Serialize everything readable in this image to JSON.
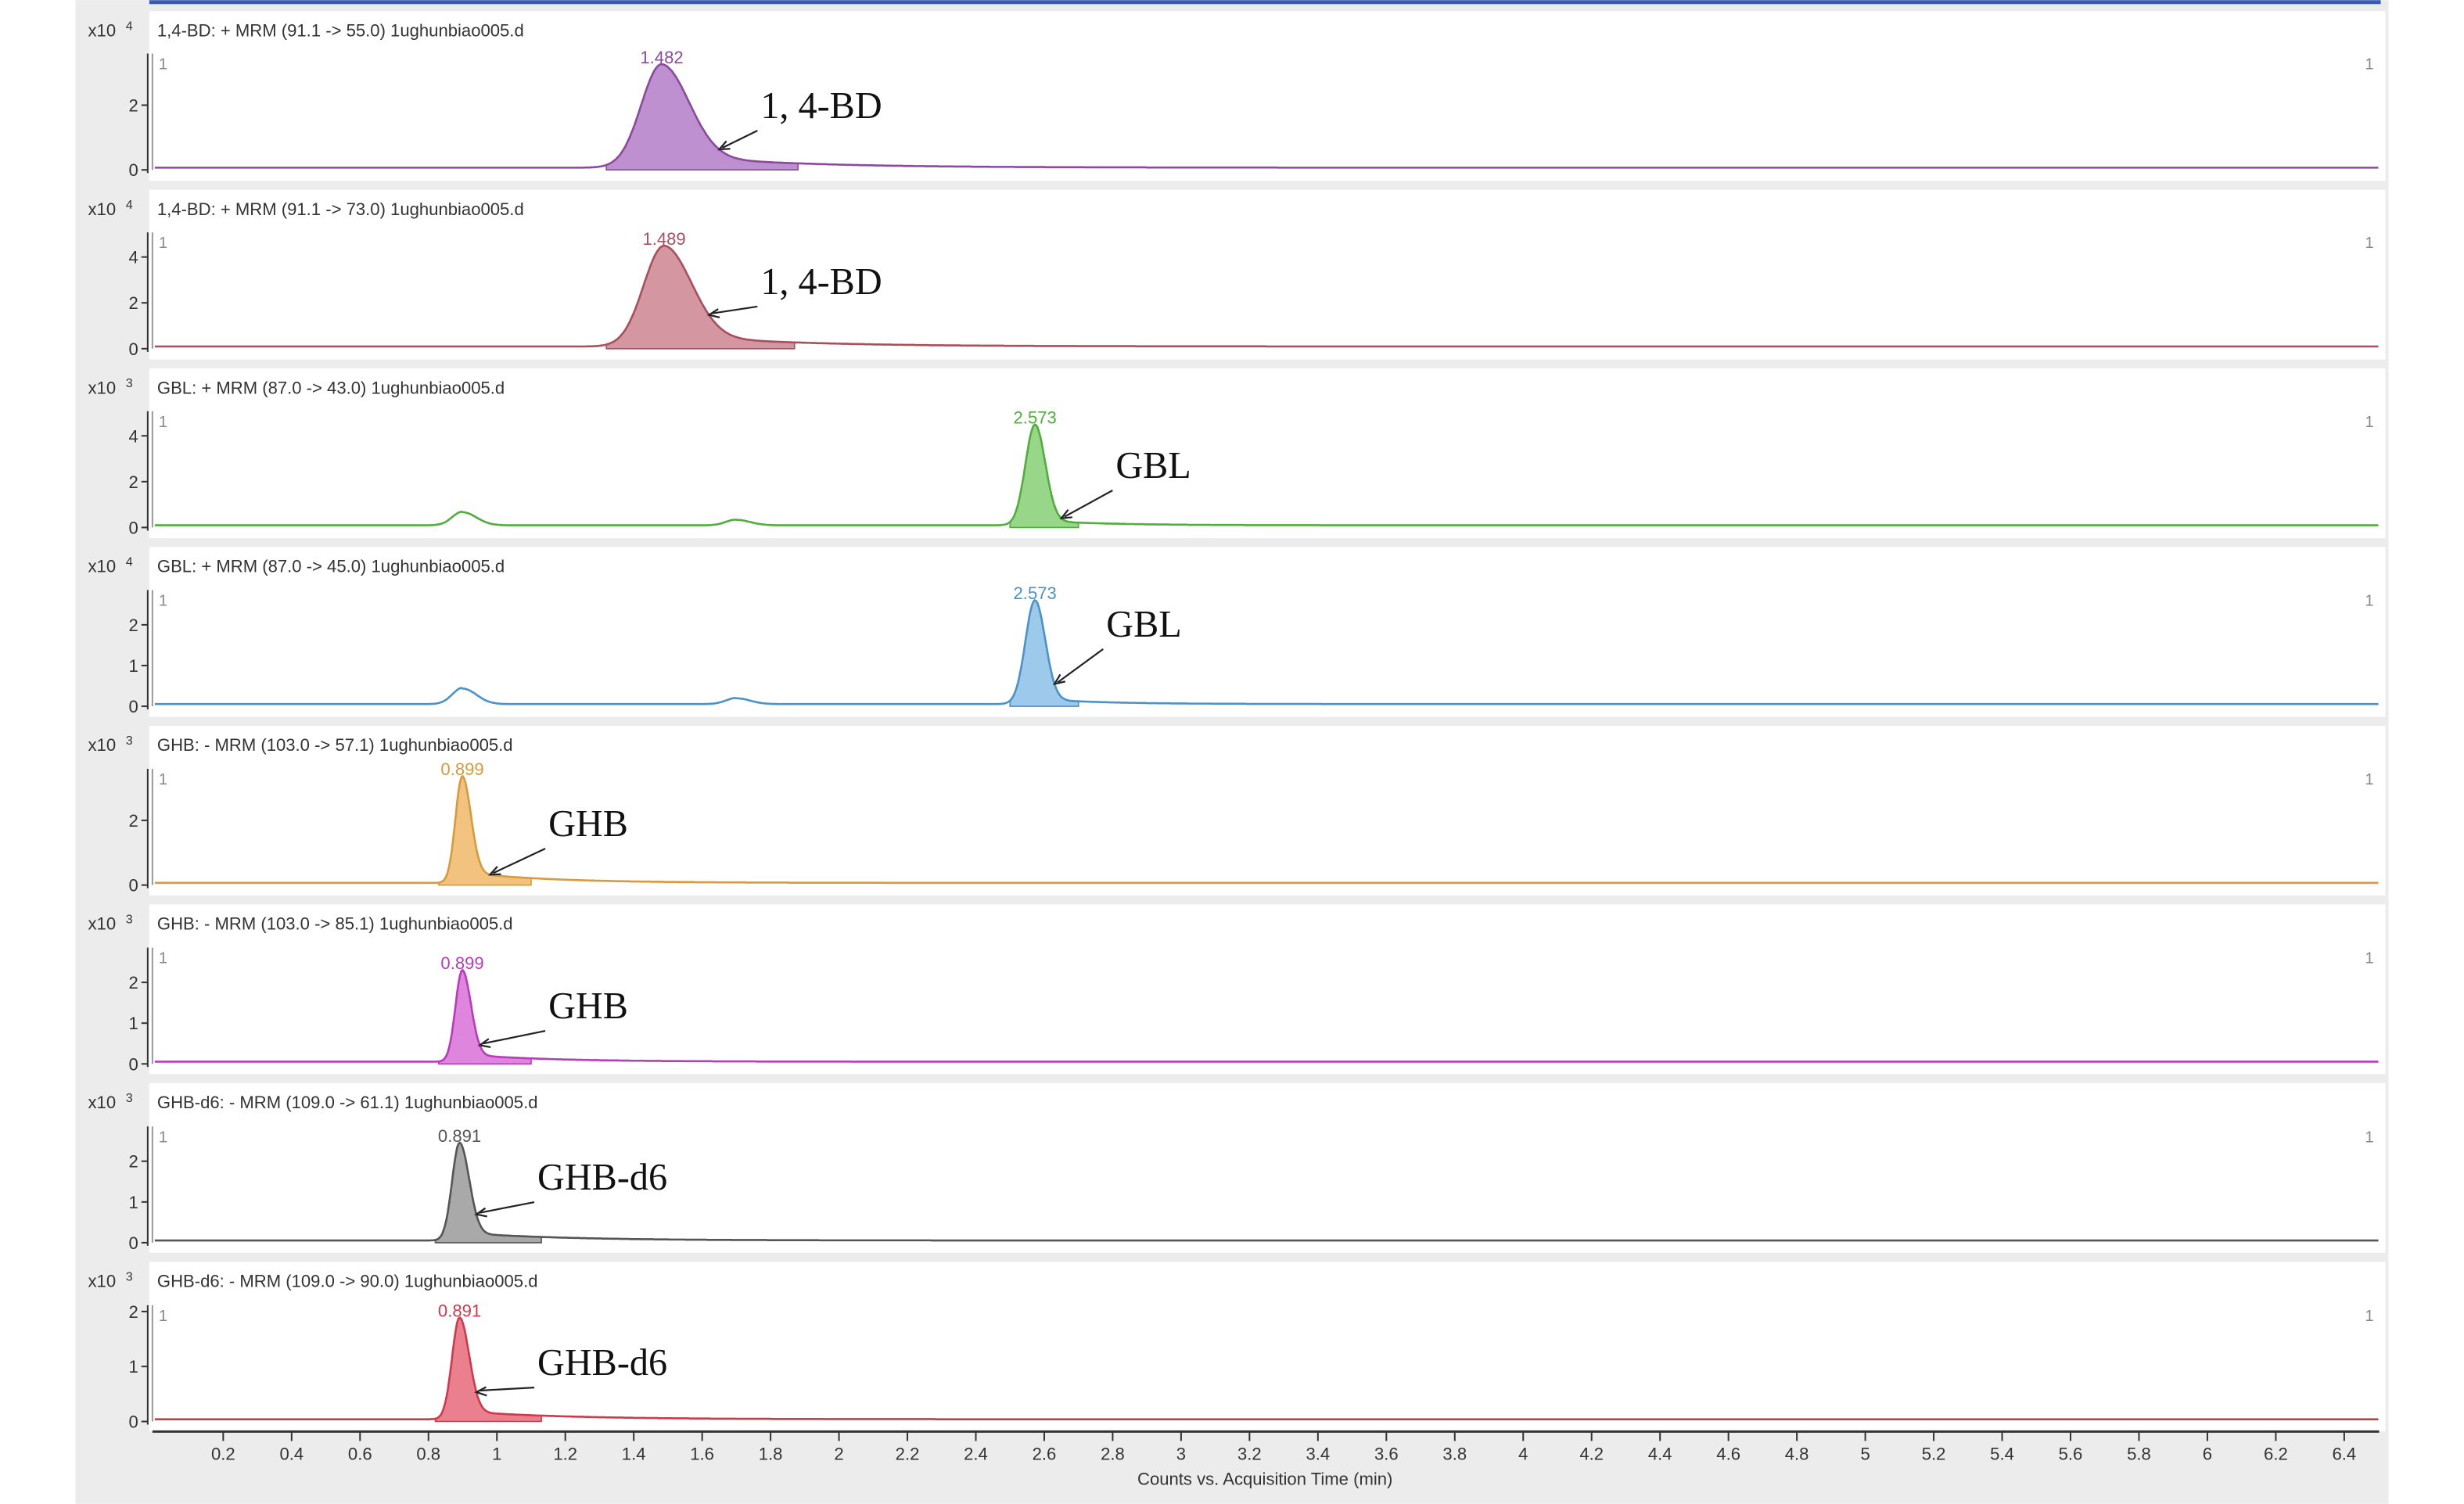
{
  "chart_data": {
    "type": "line",
    "xlabel": "Counts vs. Acquisition Time (min)",
    "xlim": [
      0,
      6.5
    ],
    "xticks": [
      "0.2",
      "0.4",
      "0.6",
      "0.8",
      "1",
      "1.2",
      "1.4",
      "1.6",
      "1.8",
      "2",
      "2.2",
      "2.4",
      "2.6",
      "2.8",
      "3",
      "3.2",
      "3.4",
      "3.6",
      "3.8",
      "4",
      "4.2",
      "4.4",
      "4.6",
      "4.8",
      "5",
      "5.2",
      "5.4",
      "5.6",
      "5.8",
      "6",
      "6.2",
      "6.4"
    ],
    "grid": false,
    "panels": [
      {
        "title": "1,4-BD: + MRM (91.1 -> 55.0) 1ughunbiao005.d",
        "exponent": "x10",
        "power": "4",
        "yticks": [
          "0",
          "2"
        ],
        "ymax": 3.4,
        "color": "#b47cc7",
        "line": "#8a4a9e",
        "marker_left": "1",
        "marker_right": "1",
        "peak_label": "1.482",
        "annotation": "1, 4-BD",
        "peaks": [
          {
            "rt": 1.482,
            "height": 3.2
          }
        ],
        "integration": [
          1.32,
          1.88
        ]
      },
      {
        "title": "1,4-BD: + MRM (91.1 -> 73.0) 1ughunbiao005.d",
        "exponent": "x10",
        "power": "4",
        "yticks": [
          "0",
          "2",
          "4"
        ],
        "ymax": 4.8,
        "color": "#cc8590",
        "line": "#a84f5e",
        "marker_left": "1",
        "marker_right": "1",
        "peak_label": "1.489",
        "annotation": "1, 4-BD",
        "peaks": [
          {
            "rt": 1.489,
            "height": 4.4
          }
        ],
        "integration": [
          1.32,
          1.87
        ]
      },
      {
        "title": "GBL: + MRM (87.0 -> 43.0) 1ughunbiao005.d",
        "exponent": "x10",
        "power": "3",
        "yticks": [
          "0",
          "2",
          "4"
        ],
        "ymax": 4.8,
        "color": "#86d074",
        "line": "#4fae3c",
        "marker_left": "1",
        "marker_right": "1",
        "peak_label": "2.573",
        "annotation": "GBL",
        "peaks": [
          {
            "rt": 0.9,
            "height": 0.6
          },
          {
            "rt": 1.7,
            "height": 0.25
          },
          {
            "rt": 2.573,
            "height": 4.4
          }
        ],
        "integration": [
          2.5,
          2.7
        ]
      },
      {
        "title": "GBL: + MRM (87.0 -> 45.0) 1ughunbiao005.d",
        "exponent": "x10",
        "power": "4",
        "yticks": [
          "0",
          "1",
          "2"
        ],
        "ymax": 2.7,
        "color": "#8cc0e6",
        "line": "#4a92c8",
        "marker_left": "1",
        "marker_right": "1",
        "peak_label": "2.573",
        "annotation": "GBL",
        "peaks": [
          {
            "rt": 0.9,
            "height": 0.4
          },
          {
            "rt": 1.7,
            "height": 0.15
          },
          {
            "rt": 2.573,
            "height": 2.55
          }
        ],
        "integration": [
          2.5,
          2.7
        ]
      },
      {
        "title": "GHB: - MRM (103.0 -> 57.1) 1ughunbiao005.d",
        "exponent": "x10",
        "power": "3",
        "yticks": [
          "0",
          "2"
        ],
        "ymax": 3.4,
        "color": "#f0b868",
        "line": "#d89a3c",
        "marker_left": "1",
        "marker_right": "1",
        "peak_label": "0.899",
        "annotation": "GHB",
        "peaks": [
          {
            "rt": 0.899,
            "height": 3.3
          }
        ],
        "integration": [
          0.83,
          1.1
        ]
      },
      {
        "title": "GHB: - MRM (103.0 -> 85.1) 1ughunbiao005.d",
        "exponent": "x10",
        "power": "3",
        "yticks": [
          "0",
          "1",
          "2"
        ],
        "ymax": 2.7,
        "color": "#d870d8",
        "line": "#b83cb8",
        "marker_left": "1",
        "marker_right": "1",
        "peak_label": "0.899",
        "annotation": "GHB",
        "peaks": [
          {
            "rt": 0.899,
            "height": 2.25
          }
        ],
        "integration": [
          0.83,
          1.1
        ]
      },
      {
        "title": "GHB-d6: - MRM (109.0 -> 61.1) 1ughunbiao005.d",
        "exponent": "x10",
        "power": "3",
        "yticks": [
          "0",
          "1",
          "2"
        ],
        "ymax": 2.7,
        "color": "#9a9a9a",
        "line": "#555555",
        "marker_left": "1",
        "marker_right": "1",
        "peak_label": "0.891",
        "annotation": "GHB-d6",
        "peaks": [
          {
            "rt": 0.891,
            "height": 2.4
          }
        ],
        "integration": [
          0.82,
          1.13
        ]
      },
      {
        "title": "GHB-d6: - MRM (109.0 -> 90.0) 1ughunbiao005.d",
        "exponent": "x10",
        "power": "3",
        "yticks": [
          "0",
          "1",
          "2"
        ],
        "ymax": 2.0,
        "color": "#e66a7a",
        "line": "#d0384c",
        "marker_left": "1",
        "marker_right": "1",
        "peak_label": "0.891",
        "annotation": "GHB-d6",
        "peaks": [
          {
            "rt": 0.891,
            "height": 1.85
          }
        ],
        "integration": [
          0.82,
          1.13
        ]
      }
    ]
  }
}
